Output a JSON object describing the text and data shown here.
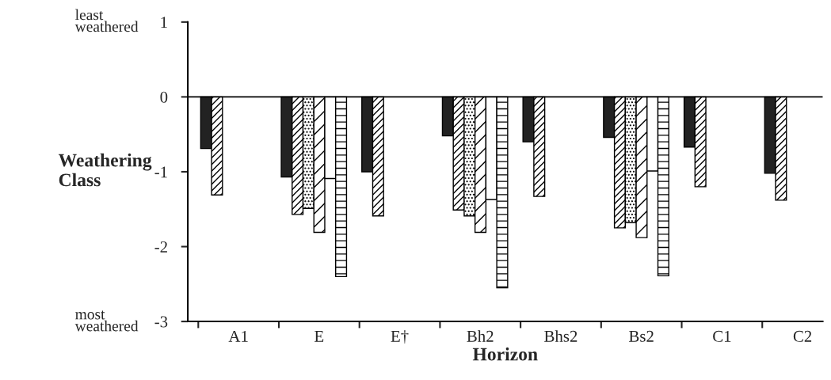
{
  "chart_data": {
    "type": "bar",
    "xlabel": "Horizon",
    "ylabel": "Weathering\nClass",
    "categories": [
      "A1",
      "E",
      "E†",
      "Bh2",
      "Bhs2",
      "Bs2",
      "C1",
      "C2"
    ],
    "series": [
      {
        "color": "#222222",
        "values": [
          -0.69,
          -1.07,
          -1.0,
          -0.52,
          -0.6,
          -0.54,
          -0.67,
          -1.02
        ]
      },
      {
        "color": "#000000",
        "values": [
          -1.31,
          -1.57,
          -1.59,
          -1.51,
          -1.33,
          -1.75,
          -1.2,
          -1.38
        ]
      },
      {
        "color": "#000000",
        "values": [
          null,
          -1.49,
          null,
          -1.59,
          null,
          -1.68,
          null,
          null
        ]
      },
      {
        "color": "#000000",
        "values": [
          null,
          -1.81,
          null,
          -1.81,
          null,
          -1.88,
          null,
          null
        ]
      },
      {
        "color": "#ffffff",
        "values": [
          null,
          -1.09,
          null,
          -1.37,
          null,
          -0.99,
          null,
          null
        ]
      },
      {
        "color": "#000000",
        "values": [
          null,
          -2.4,
          null,
          -2.55,
          null,
          -2.39,
          null,
          null
        ]
      }
    ],
    "ylim": [
      -3,
      1
    ],
    "yticks": [
      -3,
      -2,
      -1,
      0,
      1
    ],
    "ref_lines": [
      {
        "axis": "y",
        "value": 0
      }
    ],
    "annotations": [
      "least\nweathered",
      "most\nweathered"
    ],
    "grid": false,
    "legend": false
  }
}
